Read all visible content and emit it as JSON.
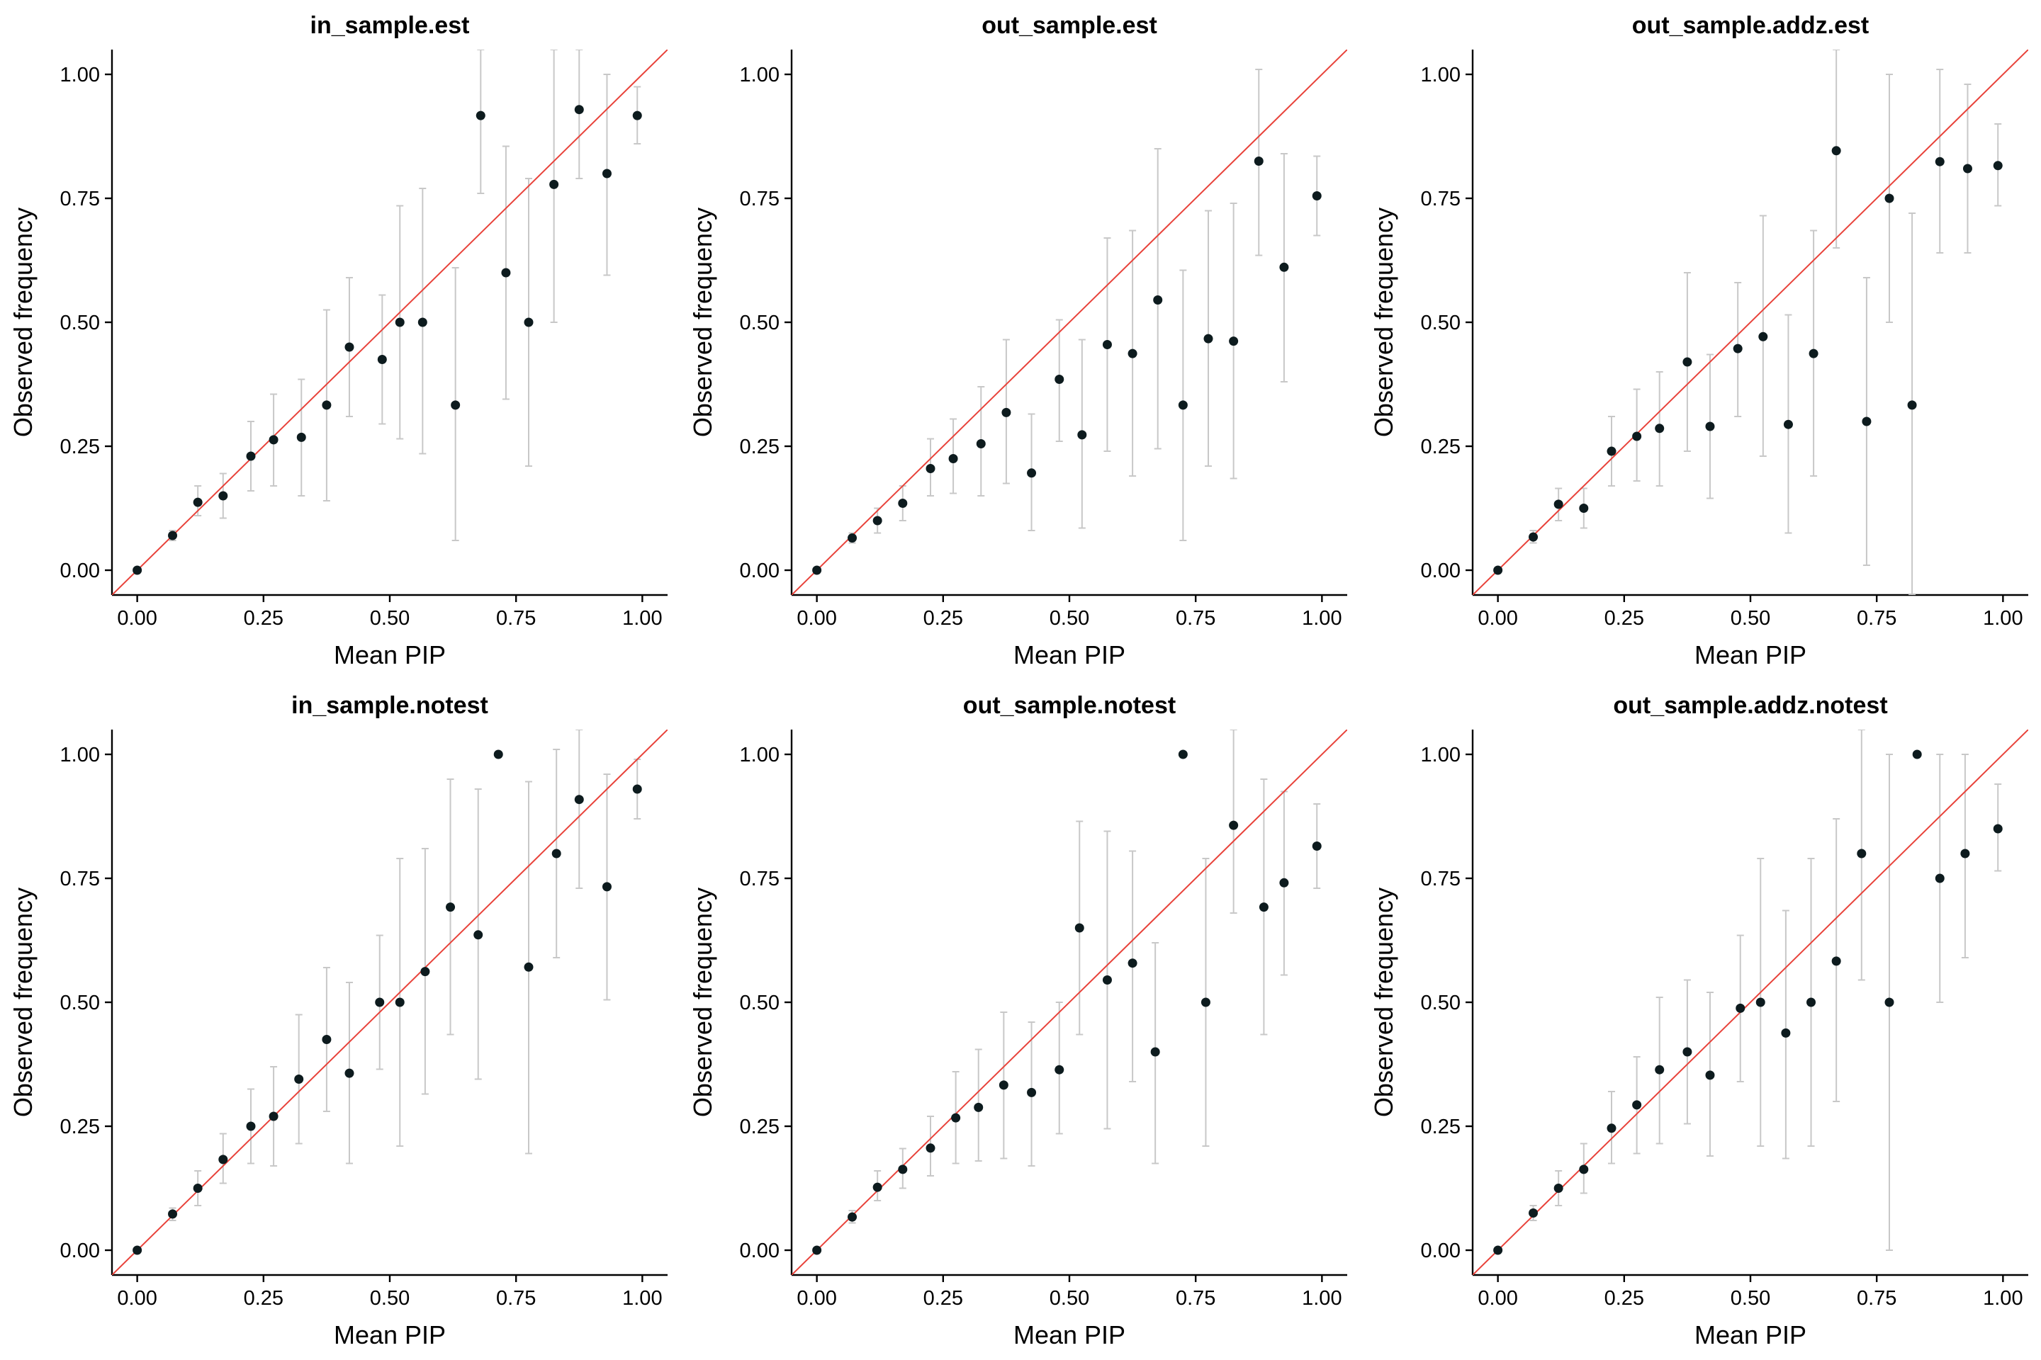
{
  "chart_data": [
    {
      "type": "scatter",
      "title": "in_sample.est",
      "xlabel": "Mean PIP",
      "ylabel": "Observed frequency",
      "xlim": [
        -0.05,
        1.05
      ],
      "ylim": [
        -0.05,
        1.05
      ],
      "xticks": [
        "0.00",
        "0.25",
        "0.50",
        "0.75",
        "1.00"
      ],
      "yticks": [
        "0.00",
        "0.25",
        "0.50",
        "0.75",
        "1.00"
      ],
      "reference_line": "y = x",
      "x": [
        0.0,
        0.07,
        0.12,
        0.17,
        0.225,
        0.27,
        0.325,
        0.375,
        0.42,
        0.485,
        0.52,
        0.565,
        0.63,
        0.68,
        0.73,
        0.775,
        0.825,
        0.875,
        0.93,
        0.99
      ],
      "y": [
        0.0,
        0.07,
        0.137,
        0.15,
        0.23,
        0.263,
        0.268,
        0.333,
        0.45,
        0.425,
        0.5,
        0.5,
        0.333,
        0.917,
        0.6,
        0.5,
        0.778,
        0.929,
        0.8,
        0.917
      ],
      "lower": [
        0.0,
        0.06,
        0.11,
        0.105,
        0.16,
        0.17,
        0.15,
        0.14,
        0.31,
        0.295,
        0.265,
        0.235,
        0.06,
        0.76,
        0.345,
        0.21,
        0.5,
        0.79,
        0.595,
        0.86
      ],
      "upper": [
        0.0,
        0.08,
        0.17,
        0.195,
        0.3,
        0.355,
        0.385,
        0.525,
        0.59,
        0.555,
        0.735,
        0.77,
        0.61,
        1.05,
        0.855,
        0.79,
        1.05,
        1.05,
        1.0,
        0.975
      ]
    },
    {
      "type": "scatter",
      "title": "out_sample.est",
      "xlabel": "Mean PIP",
      "ylabel": "Observed frequency",
      "xlim": [
        -0.05,
        1.05
      ],
      "ylim": [
        -0.05,
        1.05
      ],
      "xticks": [
        "0.00",
        "0.25",
        "0.50",
        "0.75",
        "1.00"
      ],
      "yticks": [
        "0.00",
        "0.25",
        "0.50",
        "0.75",
        "1.00"
      ],
      "reference_line": "y = x",
      "x": [
        0.0,
        0.07,
        0.12,
        0.17,
        0.225,
        0.27,
        0.325,
        0.375,
        0.425,
        0.48,
        0.525,
        0.575,
        0.625,
        0.675,
        0.725,
        0.775,
        0.825,
        0.875,
        0.925,
        0.99
      ],
      "y": [
        0.0,
        0.065,
        0.1,
        0.135,
        0.205,
        0.225,
        0.255,
        0.318,
        0.196,
        0.385,
        0.273,
        0.455,
        0.437,
        0.545,
        0.333,
        0.467,
        0.462,
        0.825,
        0.611,
        0.755
      ],
      "lower": [
        0.0,
        0.055,
        0.075,
        0.1,
        0.15,
        0.155,
        0.15,
        0.175,
        0.08,
        0.26,
        0.085,
        0.24,
        0.19,
        0.245,
        0.06,
        0.21,
        0.185,
        0.635,
        0.38,
        0.675
      ],
      "upper": [
        0.0,
        0.075,
        0.125,
        0.17,
        0.265,
        0.305,
        0.37,
        0.465,
        0.315,
        0.505,
        0.465,
        0.67,
        0.685,
        0.85,
        0.605,
        0.725,
        0.74,
        1.01,
        0.84,
        0.835
      ]
    },
    {
      "type": "scatter",
      "title": "out_sample.addz.est",
      "xlabel": "Mean PIP",
      "ylabel": "Observed frequency",
      "xlim": [
        -0.05,
        1.05
      ],
      "ylim": [
        -0.05,
        1.05
      ],
      "xticks": [
        "0.00",
        "0.25",
        "0.50",
        "0.75",
        "1.00"
      ],
      "yticks": [
        "0.00",
        "0.25",
        "0.50",
        "0.75",
        "1.00"
      ],
      "reference_line": "y = x",
      "x": [
        0.0,
        0.07,
        0.12,
        0.17,
        0.225,
        0.275,
        0.32,
        0.375,
        0.42,
        0.475,
        0.525,
        0.575,
        0.625,
        0.67,
        0.73,
        0.775,
        0.82,
        0.875,
        0.93,
        0.99
      ],
      "y": [
        0.0,
        0.067,
        0.133,
        0.125,
        0.24,
        0.27,
        0.286,
        0.42,
        0.29,
        0.447,
        0.471,
        0.294,
        0.437,
        0.846,
        0.3,
        0.75,
        0.333,
        0.824,
        0.81,
        0.816
      ],
      "lower": [
        0.0,
        0.055,
        0.1,
        0.085,
        0.17,
        0.18,
        0.17,
        0.24,
        0.145,
        0.31,
        0.23,
        0.075,
        0.19,
        0.65,
        0.01,
        0.5,
        -0.05,
        0.64,
        0.64,
        0.735
      ],
      "upper": [
        0.0,
        0.08,
        0.165,
        0.165,
        0.31,
        0.365,
        0.4,
        0.6,
        0.435,
        0.58,
        0.715,
        0.515,
        0.685,
        1.05,
        0.59,
        1.0,
        0.72,
        1.01,
        0.98,
        0.9
      ]
    },
    {
      "type": "scatter",
      "title": "in_sample.notest",
      "xlabel": "Mean PIP",
      "ylabel": "Observed frequency",
      "xlim": [
        -0.05,
        1.05
      ],
      "ylim": [
        -0.05,
        1.05
      ],
      "xticks": [
        "0.00",
        "0.25",
        "0.50",
        "0.75",
        "1.00"
      ],
      "yticks": [
        "0.00",
        "0.25",
        "0.50",
        "0.75",
        "1.00"
      ],
      "reference_line": "y = x",
      "x": [
        0.0,
        0.07,
        0.12,
        0.17,
        0.225,
        0.27,
        0.32,
        0.375,
        0.42,
        0.48,
        0.52,
        0.57,
        0.62,
        0.675,
        0.715,
        0.775,
        0.83,
        0.875,
        0.93,
        0.99
      ],
      "y": [
        0.0,
        0.073,
        0.125,
        0.183,
        0.25,
        0.27,
        0.345,
        0.425,
        0.357,
        0.5,
        0.5,
        0.562,
        0.692,
        0.636,
        1.0,
        0.571,
        0.8,
        0.909,
        0.733,
        0.93
      ],
      "lower": [
        0.0,
        0.06,
        0.09,
        0.135,
        0.175,
        0.17,
        0.215,
        0.28,
        0.175,
        0.365,
        0.21,
        0.315,
        0.435,
        0.345,
        1.0,
        0.195,
        0.59,
        0.73,
        0.505,
        0.87
      ],
      "upper": [
        0.0,
        0.085,
        0.16,
        0.235,
        0.325,
        0.37,
        0.475,
        0.57,
        0.54,
        0.635,
        0.79,
        0.81,
        0.95,
        0.93,
        1.0,
        0.945,
        1.01,
        1.05,
        0.96,
        0.99
      ]
    },
    {
      "type": "scatter",
      "title": "out_sample.notest",
      "xlabel": "Mean PIP",
      "ylabel": "Observed frequency",
      "xlim": [
        -0.05,
        1.05
      ],
      "ylim": [
        -0.05,
        1.05
      ],
      "xticks": [
        "0.00",
        "0.25",
        "0.50",
        "0.75",
        "1.00"
      ],
      "yticks": [
        "0.00",
        "0.25",
        "0.50",
        "0.75",
        "1.00"
      ],
      "reference_line": "y = x",
      "x": [
        0.0,
        0.07,
        0.12,
        0.17,
        0.225,
        0.275,
        0.32,
        0.37,
        0.425,
        0.48,
        0.52,
        0.575,
        0.625,
        0.67,
        0.725,
        0.77,
        0.825,
        0.885,
        0.925,
        0.99
      ],
      "y": [
        0.0,
        0.067,
        0.127,
        0.163,
        0.206,
        0.267,
        0.288,
        0.333,
        0.318,
        0.364,
        0.65,
        0.545,
        0.579,
        0.4,
        1.0,
        0.5,
        0.857,
        0.692,
        0.741,
        0.815
      ],
      "lower": [
        0.0,
        0.055,
        0.1,
        0.125,
        0.15,
        0.175,
        0.18,
        0.185,
        0.17,
        0.235,
        0.435,
        0.245,
        0.34,
        0.175,
        1.0,
        0.21,
        0.68,
        0.435,
        0.555,
        0.73
      ],
      "upper": [
        0.0,
        0.08,
        0.16,
        0.205,
        0.27,
        0.36,
        0.405,
        0.48,
        0.46,
        0.5,
        0.865,
        0.845,
        0.805,
        0.62,
        1.0,
        0.79,
        1.05,
        0.95,
        0.925,
        0.9
      ]
    },
    {
      "type": "scatter",
      "title": "out_sample.addz.notest",
      "xlabel": "Mean PIP",
      "ylabel": "Observed frequency",
      "xlim": [
        -0.05,
        1.05
      ],
      "ylim": [
        -0.05,
        1.05
      ],
      "xticks": [
        "0.00",
        "0.25",
        "0.50",
        "0.75",
        "1.00"
      ],
      "yticks": [
        "0.00",
        "0.25",
        "0.50",
        "0.75",
        "1.00"
      ],
      "reference_line": "y = x",
      "x": [
        0.0,
        0.07,
        0.12,
        0.17,
        0.225,
        0.275,
        0.32,
        0.375,
        0.42,
        0.48,
        0.52,
        0.57,
        0.62,
        0.67,
        0.72,
        0.775,
        0.83,
        0.875,
        0.925,
        0.99
      ],
      "y": [
        0.0,
        0.075,
        0.125,
        0.163,
        0.246,
        0.293,
        0.364,
        0.4,
        0.353,
        0.488,
        0.5,
        0.438,
        0.5,
        0.583,
        0.8,
        0.5,
        1.0,
        0.75,
        0.8,
        0.85
      ],
      "lower": [
        0.0,
        0.06,
        0.09,
        0.115,
        0.175,
        0.195,
        0.215,
        0.255,
        0.19,
        0.34,
        0.21,
        0.185,
        0.21,
        0.3,
        0.545,
        0.0,
        1.0,
        0.5,
        0.59,
        0.765
      ],
      "upper": [
        0.0,
        0.09,
        0.16,
        0.215,
        0.32,
        0.39,
        0.51,
        0.545,
        0.52,
        0.635,
        0.79,
        0.685,
        0.79,
        0.87,
        1.05,
        1.0,
        1.0,
        1.0,
        1.0,
        0.94
      ]
    }
  ],
  "colors": {
    "point": "#0d1b1e",
    "reference_line": "#e8423a",
    "error_bar": "#c8c8c8",
    "axis": "#000000",
    "text": "#000000"
  }
}
